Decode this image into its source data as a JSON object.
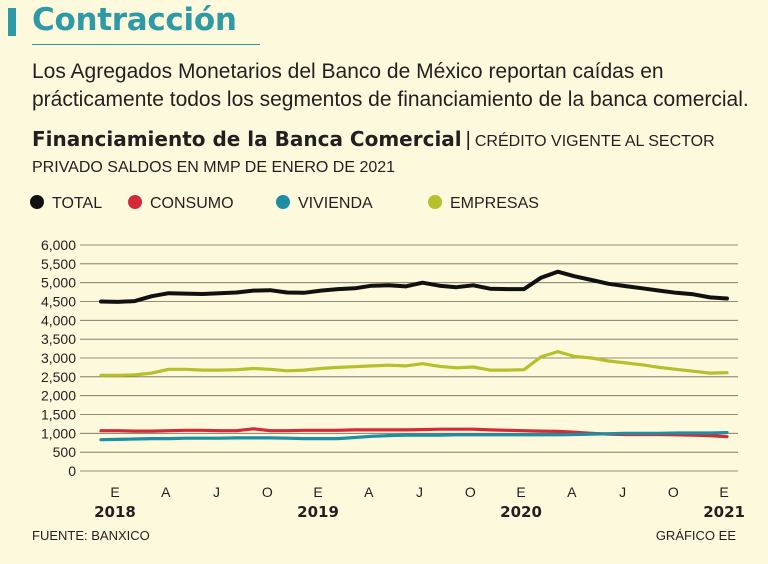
{
  "header": {
    "title": "Contracción",
    "subtitle": "Los Agregados Monetarios del Banco de México reportan caídas en prácticamente todos los segmentos de financiamiento de la banca comercial.",
    "chart_title": "Financiamiento de la Banca Comercial",
    "separator": "|",
    "chart_subtitle": "Crédito vigente al sector privado saldos en MMP de enero de 2021"
  },
  "legend": [
    {
      "label": "TOTAL",
      "color": "#111111"
    },
    {
      "label": "CONSUMO",
      "color": "#d42a37"
    },
    {
      "label": "VIVIENDA",
      "color": "#1d8ea3"
    },
    {
      "label": "EMPRESAS",
      "color": "#b6bf2c"
    }
  ],
  "footer": {
    "source": "FUENTE: BANXICO",
    "credit": "GRÁFICO EE"
  },
  "chart_data": {
    "type": "line",
    "title": "Financiamiento de la Banca Comercial",
    "xlabel": "",
    "ylabel": "",
    "ylim": [
      0,
      6000
    ],
    "yticks": [
      0,
      500,
      1000,
      1500,
      2000,
      2500,
      3000,
      3500,
      4000,
      4500,
      5000,
      5500,
      6000
    ],
    "ytick_labels": [
      "0",
      "500",
      "1,000",
      "1,500",
      "2,000",
      "2,500",
      "3,000",
      "3,500",
      "4,000",
      "4,500",
      "5,000",
      "5,500",
      "6,000"
    ],
    "grid": true,
    "x_ticks": [
      {
        "label": "E",
        "index": 0,
        "year": "2018"
      },
      {
        "label": "A",
        "index": 3
      },
      {
        "label": "J",
        "index": 6
      },
      {
        "label": "O",
        "index": 9
      },
      {
        "label": "E",
        "index": 12,
        "year": "2019"
      },
      {
        "label": "A",
        "index": 15
      },
      {
        "label": "J",
        "index": 18
      },
      {
        "label": "O",
        "index": 21
      },
      {
        "label": "E",
        "index": 24,
        "year": "2020"
      },
      {
        "label": "A",
        "index": 27
      },
      {
        "label": "J",
        "index": 30
      },
      {
        "label": "O",
        "index": 33
      },
      {
        "label": "E",
        "index": 36,
        "year": "2021"
      }
    ],
    "n_points": 38,
    "series": [
      {
        "name": "TOTAL",
        "color": "#111111",
        "values": [
          4500,
          4490,
          4510,
          4640,
          4720,
          4710,
          4700,
          4720,
          4740,
          4790,
          4800,
          4740,
          4730,
          4790,
          4830,
          4850,
          4920,
          4930,
          4900,
          5000,
          4920,
          4880,
          4930,
          4840,
          4830,
          4830,
          5130,
          5290,
          5170,
          5070,
          4970,
          4910,
          4850,
          4790,
          4730,
          4690,
          4610,
          4580
        ]
      },
      {
        "name": "CONSUMO",
        "color": "#d42a37",
        "values": [
          1070,
          1070,
          1060,
          1060,
          1070,
          1080,
          1080,
          1070,
          1070,
          1120,
          1070,
          1070,
          1080,
          1080,
          1080,
          1090,
          1090,
          1090,
          1090,
          1100,
          1110,
          1110,
          1110,
          1090,
          1080,
          1070,
          1060,
          1050,
          1030,
          1000,
          980,
          970,
          970,
          970,
          960,
          950,
          940,
          910
        ]
      },
      {
        "name": "VIVIENDA",
        "color": "#1d8ea3",
        "values": [
          830,
          840,
          850,
          860,
          860,
          870,
          870,
          870,
          880,
          880,
          880,
          870,
          860,
          860,
          860,
          890,
          920,
          940,
          950,
          950,
          950,
          960,
          960,
          960,
          960,
          960,
          960,
          960,
          970,
          980,
          990,
          1000,
          1000,
          1000,
          1010,
          1010,
          1010,
          1020
        ]
      },
      {
        "name": "EMPRESAS",
        "color": "#b6bf2c",
        "values": [
          2540,
          2540,
          2550,
          2600,
          2700,
          2700,
          2680,
          2680,
          2690,
          2720,
          2700,
          2660,
          2680,
          2720,
          2750,
          2770,
          2790,
          2810,
          2790,
          2850,
          2780,
          2740,
          2760,
          2680,
          2680,
          2690,
          3030,
          3170,
          3040,
          3000,
          2920,
          2870,
          2820,
          2750,
          2700,
          2650,
          2600,
          2610
        ]
      }
    ]
  }
}
